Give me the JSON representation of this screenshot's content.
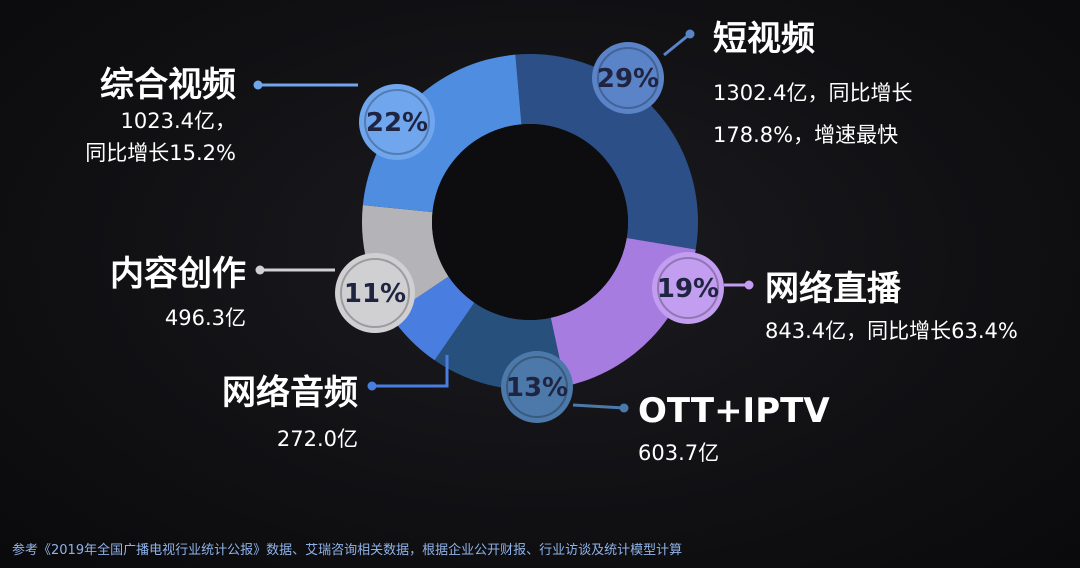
{
  "chart_data": {
    "type": "pie",
    "donut": true,
    "segments": [
      {
        "name": "短视频",
        "percent": 29,
        "percent_label": "29%",
        "value": 1302.4,
        "details": [
          "1302.4亿，同比增长",
          "178.8%，增速最快"
        ],
        "color": "#2b4f86",
        "badge_color": "#5a83c8"
      },
      {
        "name": "网络直播",
        "percent": 19,
        "percent_label": "19%",
        "value": 843.4,
        "details": [
          "843.4亿，同比增长63.4%"
        ],
        "color": "#a77ce0",
        "badge_color": "#c29df0"
      },
      {
        "name": "OTT+IPTV",
        "percent": 13,
        "percent_label": "13%",
        "value": 603.7,
        "details": [
          "603.7亿"
        ],
        "color": "#27507c",
        "badge_color": "#4c78aa"
      },
      {
        "name": "网络音频",
        "percent": 6,
        "percent_label": "",
        "value": 272.0,
        "details": [
          "272.0亿"
        ],
        "color": "#4a7de0",
        "badge_color": "#4a7de0"
      },
      {
        "name": "内容创作",
        "percent": 11,
        "percent_label": "11%",
        "value": 496.3,
        "details": [
          "496.3亿"
        ],
        "color": "#b4b4b8",
        "badge_color": "#d0d0d3"
      },
      {
        "name": "综合视频",
        "percent": 22,
        "percent_label": "22%",
        "value": 1023.4,
        "details": [
          "1023.4亿，",
          "同比增长15.2%"
        ],
        "color": "#4f8de0",
        "badge_color": "#6fa6ee"
      }
    ]
  },
  "source_note": "参考《2019年全国广播电视行业统计公报》数据、艾瑞咨询相关数据，根据企业公开财报、行业访谈及统计模型计算"
}
